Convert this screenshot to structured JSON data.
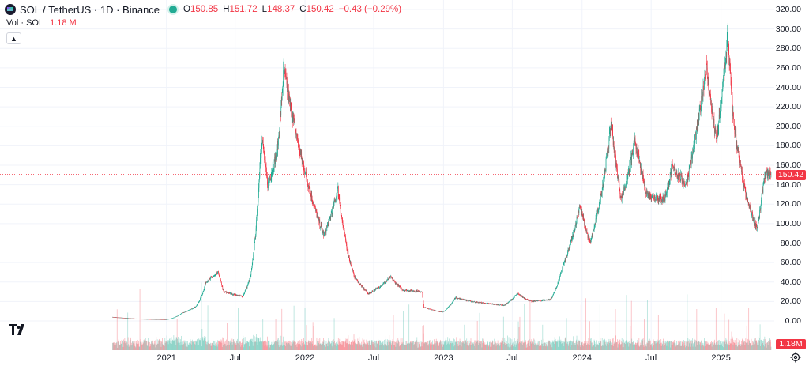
{
  "header": {
    "symbol": "SOL / TetherUS · 1D · Binance",
    "open_label": "O",
    "open_value": "150.85",
    "high_label": "H",
    "high_value": "151.72",
    "low_label": "L",
    "low_value": "148.37",
    "close_label": "C",
    "close_value": "150.42",
    "change": "−0.43 (−0.29%)"
  },
  "volume": {
    "label": "Vol · SOL",
    "value": "1.18 M"
  },
  "price_tag": "150.42",
  "volume_tag": "1.18M",
  "colors": {
    "up": "#22ab94",
    "down": "#f23645",
    "grid": "#f0f3fa",
    "price_line": "#f23645"
  },
  "icons": {
    "collapse": "chevron-up-icon",
    "logo": "tradingview-logo-icon",
    "settings": "gear-icon",
    "symbol": "solana-logo-icon"
  },
  "chart_data": {
    "type": "candlestick",
    "y_axis_labels": [
      "320.00",
      "300.00",
      "280.00",
      "260.00",
      "240.00",
      "220.00",
      "200.00",
      "180.00",
      "160.00",
      "140.00",
      "120.00",
      "100.00",
      "80.00",
      "60.00",
      "40.00",
      "20.00",
      "0.00"
    ],
    "ylim": [
      0,
      320
    ],
    "x_axis_labels": [
      "2021",
      "Jul",
      "2022",
      "Jul",
      "2023",
      "Jul",
      "2024",
      "Jul",
      "2025"
    ],
    "x_ticks": [
      "2021-01-01",
      "2021-07-01",
      "2022-01-01",
      "2022-07-01",
      "2023-01-01",
      "2023-07-01",
      "2024-01-01",
      "2024-07-01",
      "2025-01-01"
    ],
    "last_price": 150.42,
    "grid": true,
    "price_anchors": [
      [
        "2020-08-11",
        4.0
      ],
      [
        "2020-09-15",
        3.0
      ],
      [
        "2020-11-01",
        2.0
      ],
      [
        "2020-12-31",
        1.5
      ],
      [
        "2021-02-10",
        8
      ],
      [
        "2021-03-20",
        15
      ],
      [
        "2021-04-15",
        40
      ],
      [
        "2021-05-18",
        50
      ],
      [
        "2021-06-01",
        30
      ],
      [
        "2021-07-20",
        25
      ],
      [
        "2021-08-10",
        45
      ],
      [
        "2021-09-08",
        195
      ],
      [
        "2021-09-25",
        140
      ],
      [
        "2021-10-20",
        175
      ],
      [
        "2021-11-06",
        258
      ],
      [
        "2021-12-05",
        200
      ],
      [
        "2022-01-10",
        140
      ],
      [
        "2022-02-20",
        88
      ],
      [
        "2022-03-29",
        136
      ],
      [
        "2022-05-12",
        45
      ],
      [
        "2022-06-18",
        28
      ],
      [
        "2022-08-15",
        45
      ],
      [
        "2022-09-15",
        32
      ],
      [
        "2022-11-06",
        30
      ],
      [
        "2022-11-10",
        14
      ],
      [
        "2022-12-29",
        9
      ],
      [
        "2023-02-01",
        24
      ],
      [
        "2023-03-15",
        20
      ],
      [
        "2023-06-10",
        16
      ],
      [
        "2023-07-14",
        28
      ],
      [
        "2023-08-20",
        20
      ],
      [
        "2023-10-10",
        22
      ],
      [
        "2023-11-10",
        55
      ],
      [
        "2023-12-26",
        120
      ],
      [
        "2024-01-22",
        80
      ],
      [
        "2024-03-18",
        205
      ],
      [
        "2024-04-13",
        125
      ],
      [
        "2024-05-20",
        185
      ],
      [
        "2024-06-20",
        130
      ],
      [
        "2024-08-05",
        125
      ],
      [
        "2024-08-25",
        158
      ],
      [
        "2024-10-01",
        140
      ],
      [
        "2024-11-23",
        262
      ],
      [
        "2024-12-20",
        185
      ],
      [
        "2025-01-19",
        295
      ],
      [
        "2025-02-03",
        205
      ],
      [
        "2025-03-10",
        125
      ],
      [
        "2025-04-07",
        95
      ],
      [
        "2025-04-25",
        150
      ],
      [
        "2025-05-13",
        150.42
      ]
    ]
  }
}
